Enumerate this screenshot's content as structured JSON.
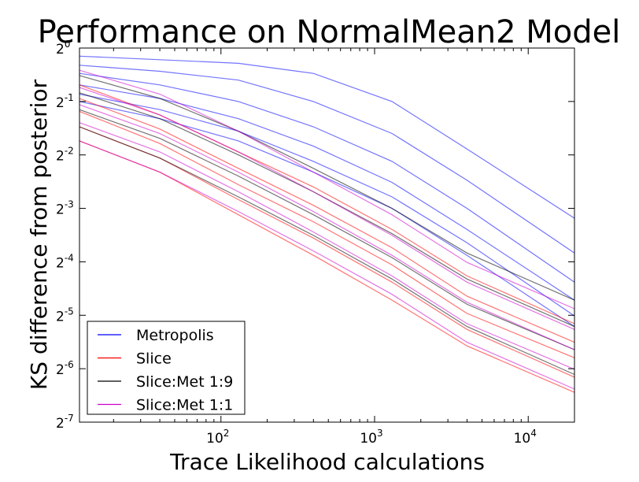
{
  "chart_data": {
    "type": "line",
    "title": "Performance on NormalMean2 Model",
    "xlabel": "Trace Likelihood calculations",
    "ylabel": "KS difference from posterior",
    "xscale": "log10",
    "yscale": "log2",
    "xlim": [
      12,
      20000
    ],
    "ylim": [
      0.0078125,
      1
    ],
    "x_ticks": [
      {
        "base": "10",
        "exp": "2",
        "value": 100
      },
      {
        "base": "10",
        "exp": "3",
        "value": 1000
      },
      {
        "base": "10",
        "exp": "4",
        "value": 10000
      }
    ],
    "y_ticks": [
      {
        "base": "2",
        "exp": "0",
        "value": 1
      },
      {
        "base": "2",
        "exp": "-1",
        "value": 0.5
      },
      {
        "base": "2",
        "exp": "-2",
        "value": 0.25
      },
      {
        "base": "2",
        "exp": "-3",
        "value": 0.125
      },
      {
        "base": "2",
        "exp": "-4",
        "value": 0.0625
      },
      {
        "base": "2",
        "exp": "-5",
        "value": 0.03125
      },
      {
        "base": "2",
        "exp": "-6",
        "value": 0.015625
      },
      {
        "base": "2",
        "exp": "-7",
        "value": 0.0078125
      }
    ],
    "grid": false,
    "legend_position": "lower-left",
    "series": [
      {
        "name": "Metropolis",
        "color": "#0000ff",
        "x": [
          12,
          40,
          130,
          400,
          1300,
          4000,
          20000
        ],
        "runs": [
          [
            0.9,
            0.86,
            0.82,
            0.72,
            0.5,
            0.27,
            0.11
          ],
          [
            0.8,
            0.74,
            0.66,
            0.5,
            0.33,
            0.18,
            0.07
          ],
          [
            0.72,
            0.62,
            0.5,
            0.36,
            0.23,
            0.125,
            0.048
          ],
          [
            0.62,
            0.52,
            0.4,
            0.28,
            0.175,
            0.095,
            0.038
          ],
          [
            0.55,
            0.45,
            0.34,
            0.23,
            0.145,
            0.08,
            0.031
          ],
          [
            0.5,
            0.4,
            0.3,
            0.2,
            0.125,
            0.068,
            0.027
          ]
        ]
      },
      {
        "name": "Slice",
        "color": "#ff0000",
        "x": [
          12,
          40,
          130,
          400,
          1300,
          4000,
          20000
        ],
        "runs": [
          [
            0.62,
            0.42,
            0.26,
            0.165,
            0.095,
            0.052,
            0.028
          ],
          [
            0.52,
            0.35,
            0.21,
            0.13,
            0.075,
            0.04,
            0.022
          ],
          [
            0.44,
            0.29,
            0.17,
            0.105,
            0.06,
            0.032,
            0.018
          ],
          [
            0.36,
            0.24,
            0.14,
            0.085,
            0.048,
            0.026,
            0.014
          ],
          [
            0.3,
            0.2,
            0.115,
            0.068,
            0.038,
            0.021,
            0.0115
          ]
        ]
      },
      {
        "name": "Slice:Met 1:9",
        "color": "#000000",
        "x": [
          12,
          40,
          130,
          400,
          1300,
          4000,
          20000
        ],
        "runs": [
          [
            0.7,
            0.52,
            0.34,
            0.21,
            0.125,
            0.07,
            0.038
          ],
          [
            0.56,
            0.4,
            0.25,
            0.155,
            0.09,
            0.05,
            0.027
          ],
          [
            0.45,
            0.31,
            0.19,
            0.115,
            0.066,
            0.036,
            0.02
          ],
          [
            0.36,
            0.24,
            0.145,
            0.088,
            0.05,
            0.027,
            0.0145
          ]
        ]
      },
      {
        "name": "Slice:Met 1:1",
        "color": "#cc00cc",
        "x": [
          12,
          40,
          130,
          400,
          1300,
          4000,
          20000
        ],
        "runs": [
          [
            0.75,
            0.55,
            0.34,
            0.2,
            0.115,
            0.062,
            0.034
          ],
          [
            0.6,
            0.42,
            0.26,
            0.155,
            0.088,
            0.048,
            0.026
          ],
          [
            0.48,
            0.33,
            0.2,
            0.12,
            0.068,
            0.037,
            0.02
          ],
          [
            0.38,
            0.26,
            0.155,
            0.092,
            0.052,
            0.028,
            0.0155
          ],
          [
            0.3,
            0.2,
            0.12,
            0.072,
            0.041,
            0.022,
            0.012
          ]
        ]
      }
    ]
  }
}
